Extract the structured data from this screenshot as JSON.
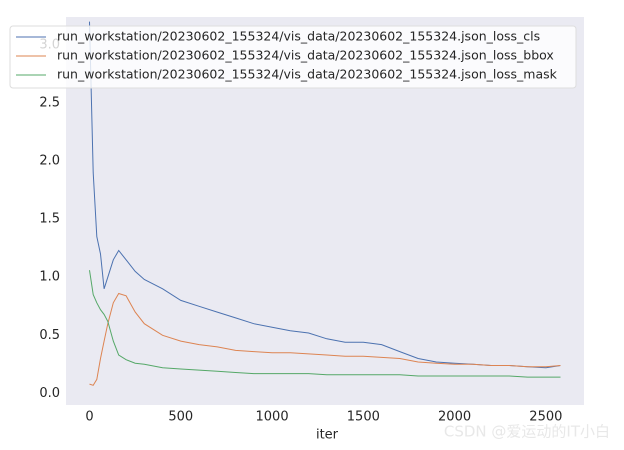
{
  "chart_data": {
    "type": "line",
    "x": [
      0,
      20,
      40,
      60,
      80,
      100,
      130,
      160,
      200,
      250,
      300,
      400,
      500,
      600,
      700,
      800,
      900,
      1000,
      1100,
      1200,
      1300,
      1400,
      1500,
      1600,
      1700,
      1800,
      1900,
      2000,
      2100,
      2200,
      2300,
      2400,
      2500,
      2580
    ],
    "series": [
      {
        "name": "run_workstation/20230602_155324/vis_data/20230602_155324.json_loss_cls",
        "color": "#4c72b0",
        "values": [
          3.2,
          1.9,
          1.35,
          1.2,
          0.9,
          1.0,
          1.15,
          1.23,
          1.15,
          1.05,
          0.98,
          0.9,
          0.8,
          0.75,
          0.7,
          0.65,
          0.6,
          0.57,
          0.54,
          0.52,
          0.47,
          0.44,
          0.44,
          0.42,
          0.36,
          0.3,
          0.27,
          0.26,
          0.25,
          0.24,
          0.24,
          0.23,
          0.22,
          0.24
        ]
      },
      {
        "name": "run_workstation/20230602_155324/vis_data/20230602_155324.json_loss_bbox",
        "color": "#dd8452",
        "values": [
          0.08,
          0.07,
          0.12,
          0.3,
          0.45,
          0.6,
          0.78,
          0.86,
          0.84,
          0.7,
          0.6,
          0.5,
          0.45,
          0.42,
          0.4,
          0.37,
          0.36,
          0.35,
          0.35,
          0.34,
          0.33,
          0.32,
          0.32,
          0.31,
          0.3,
          0.27,
          0.26,
          0.25,
          0.25,
          0.24,
          0.24,
          0.23,
          0.23,
          0.24
        ]
      },
      {
        "name": "run_workstation/20230602_155324/vis_data/20230602_155324.json_loss_mask",
        "color": "#55a868",
        "values": [
          1.06,
          0.85,
          0.78,
          0.72,
          0.68,
          0.62,
          0.45,
          0.33,
          0.29,
          0.26,
          0.25,
          0.22,
          0.21,
          0.2,
          0.19,
          0.18,
          0.17,
          0.17,
          0.17,
          0.17,
          0.16,
          0.16,
          0.16,
          0.16,
          0.16,
          0.15,
          0.15,
          0.15,
          0.15,
          0.15,
          0.15,
          0.14,
          0.14,
          0.14
        ]
      }
    ],
    "x_label": "iter",
    "xlim": [
      -129,
      2709
    ],
    "xticks": [
      0,
      500,
      1000,
      1500,
      2000,
      2500
    ],
    "ylim": [
      -0.1,
      3.24
    ],
    "yticks": [
      {
        "value": 0,
        "label": "0.0"
      },
      0.5,
      {
        "value": 1,
        "label": "1.0"
      },
      1.5,
      {
        "value": 2,
        "label": "2.0"
      },
      2.5,
      {
        "value": 3,
        "label": "3.0"
      }
    ],
    "grid": false,
    "legend": "upper left",
    "annotation": "CSDN @爱运动的IT小白"
  }
}
